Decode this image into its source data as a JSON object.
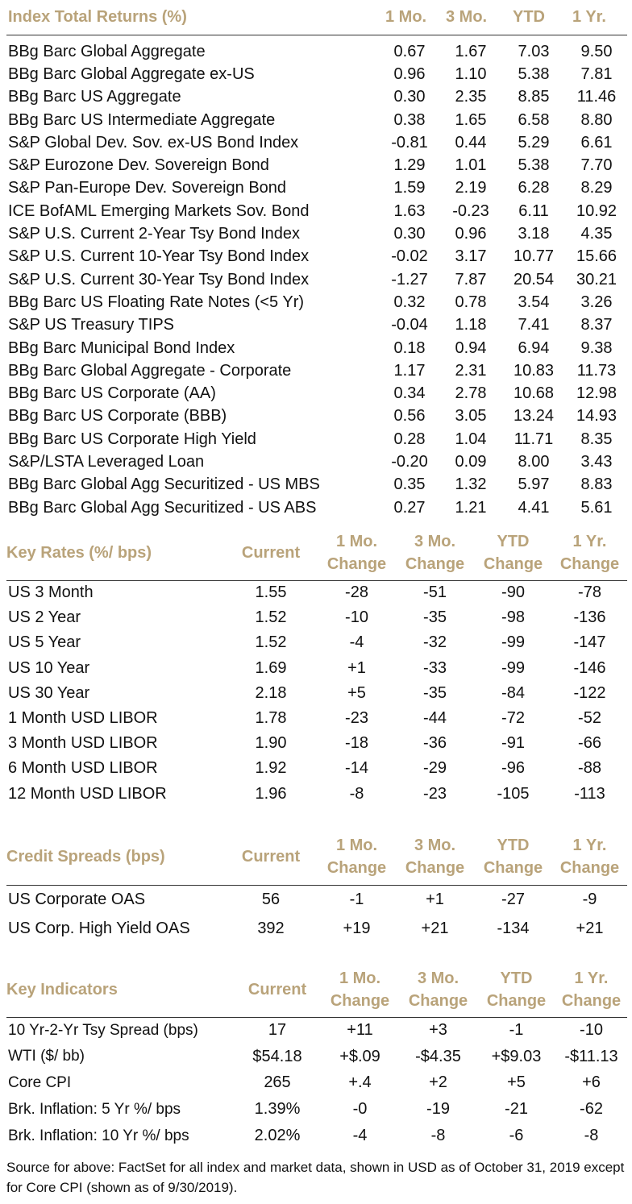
{
  "index_returns": {
    "title": "Index Total Returns (%)",
    "columns": [
      "1 Mo.",
      "3 Mo.",
      "YTD",
      "1 Yr."
    ],
    "rows": [
      {
        "name": "BBg Barc Global Aggregate",
        "v": [
          "0.67",
          "1.67",
          "7.03",
          "9.50"
        ]
      },
      {
        "name": "BBg Barc Global Aggregate ex-US",
        "v": [
          "0.96",
          "1.10",
          "5.38",
          "7.81"
        ]
      },
      {
        "name": "BBg Barc US Aggregate",
        "v": [
          "0.30",
          "2.35",
          "8.85",
          "11.46"
        ]
      },
      {
        "name": "BBg Barc US Intermediate Aggregate",
        "v": [
          "0.38",
          "1.65",
          "6.58",
          "8.80"
        ]
      },
      {
        "name": "S&P Global Dev. Sov. ex-US Bond Index",
        "v": [
          "-0.81",
          "0.44",
          "5.29",
          "6.61"
        ]
      },
      {
        "name": "S&P Eurozone Dev. Sovereign Bond",
        "v": [
          "1.29",
          "1.01",
          "5.38",
          "7.70"
        ]
      },
      {
        "name": "S&P Pan-Europe Dev. Sovereign Bond",
        "v": [
          "1.59",
          "2.19",
          "6.28",
          "8.29"
        ]
      },
      {
        "name": "ICE BofAML Emerging Markets Sov. Bond",
        "v": [
          "1.63",
          "-0.23",
          "6.11",
          "10.92"
        ]
      },
      {
        "name": "S&P U.S. Current 2-Year Tsy Bond Index",
        "v": [
          "0.30",
          "0.96",
          "3.18",
          "4.35"
        ]
      },
      {
        "name": "S&P U.S. Current 10-Year Tsy Bond Index",
        "v": [
          "-0.02",
          "3.17",
          "10.77",
          "15.66"
        ]
      },
      {
        "name": "S&P U.S. Current 30-Year Tsy Bond Index",
        "v": [
          "-1.27",
          "7.87",
          "20.54",
          "30.21"
        ]
      },
      {
        "name": "BBg Barc US Floating Rate Notes (<5 Yr)",
        "v": [
          "0.32",
          "0.78",
          "3.54",
          "3.26"
        ]
      },
      {
        "name": "S&P US Treasury TIPS",
        "v": [
          "-0.04",
          "1.18",
          "7.41",
          "8.37"
        ]
      },
      {
        "name": "BBg Barc Municipal Bond Index",
        "v": [
          "0.18",
          "0.94",
          "6.94",
          "9.38"
        ]
      },
      {
        "name": "BBg Barc Global Aggregate - Corporate",
        "v": [
          "1.17",
          "2.31",
          "10.83",
          "11.73"
        ]
      },
      {
        "name": "BBg Barc US Corporate (AA)",
        "v": [
          "0.34",
          "2.78",
          "10.68",
          "12.98"
        ]
      },
      {
        "name": "BBg Barc US Corporate (BBB)",
        "v": [
          "0.56",
          "3.05",
          "13.24",
          "14.93"
        ]
      },
      {
        "name": "BBg Barc US Corporate High Yield",
        "v": [
          "0.28",
          "1.04",
          "11.71",
          "8.35"
        ]
      },
      {
        "name": "S&P/LSTA Leveraged Loan",
        "v": [
          "-0.20",
          "0.09",
          "8.00",
          "3.43"
        ]
      },
      {
        "name": "BBg Barc Global Agg Securitized - US MBS",
        "v": [
          "0.35",
          "1.32",
          "5.97",
          "8.83"
        ]
      },
      {
        "name": "BBg Barc Global Agg Securitized - US ABS",
        "v": [
          "0.27",
          "1.21",
          "4.41",
          "5.61"
        ]
      }
    ]
  },
  "key_rates": {
    "title": "Key Rates (%/ bps)",
    "columns": [
      {
        "l1": "Current",
        "l2": ""
      },
      {
        "l1": "1 Mo.",
        "l2": "Change"
      },
      {
        "l1": "3 Mo.",
        "l2": "Change"
      },
      {
        "l1": "YTD",
        "l2": "Change"
      },
      {
        "l1": "1 Yr.",
        "l2": "Change"
      }
    ],
    "rows": [
      {
        "name": "US 3 Month",
        "v": [
          "1.55",
          "-28",
          "-51",
          "-90",
          "-78"
        ]
      },
      {
        "name": "US 2 Year",
        "v": [
          "1.52",
          "-10",
          "-35",
          "-98",
          "-136"
        ]
      },
      {
        "name": "US 5 Year",
        "v": [
          "1.52",
          "-4",
          "-32",
          "-99",
          "-147"
        ]
      },
      {
        "name": "US 10 Year",
        "v": [
          "1.69",
          "+1",
          "-33",
          "-99",
          "-146"
        ]
      },
      {
        "name": "US 30 Year",
        "v": [
          "2.18",
          "+5",
          "-35",
          "-84",
          "-122"
        ]
      },
      {
        "name": "1 Month USD LIBOR",
        "v": [
          "1.78",
          "-23",
          "-44",
          "-72",
          "-52"
        ]
      },
      {
        "name": "3 Month USD LIBOR",
        "v": [
          "1.90",
          "-18",
          "-36",
          "-91",
          "-66"
        ]
      },
      {
        "name": "6 Month USD LIBOR",
        "v": [
          "1.92",
          "-14",
          "-29",
          "-96",
          "-88"
        ]
      },
      {
        "name": "12 Month USD LIBOR",
        "v": [
          "1.96",
          "-8",
          "-23",
          "-105",
          "-113"
        ]
      }
    ]
  },
  "credit_spreads": {
    "title": "Credit Spreads (bps)",
    "columns": [
      {
        "l1": "Current",
        "l2": ""
      },
      {
        "l1": "1 Mo.",
        "l2": "Change"
      },
      {
        "l1": "3 Mo.",
        "l2": "Change"
      },
      {
        "l1": "YTD",
        "l2": "Change"
      },
      {
        "l1": "1 Yr.",
        "l2": "Change"
      }
    ],
    "rows": [
      {
        "name": "US Corporate OAS",
        "v": [
          "56",
          "-1",
          "+1",
          "-27",
          "-9"
        ]
      },
      {
        "name": "US Corp. High Yield OAS",
        "v": [
          "392",
          "+19",
          "+21",
          "-134",
          "+21"
        ]
      }
    ]
  },
  "key_indicators": {
    "title": "Key Indicators",
    "columns": [
      {
        "l1": "Current",
        "l2": ""
      },
      {
        "l1": "1 Mo.",
        "l2": "Change"
      },
      {
        "l1": "3 Mo.",
        "l2": "Change"
      },
      {
        "l1": "YTD",
        "l2": "Change"
      },
      {
        "l1": "1 Yr.",
        "l2": "Change"
      }
    ],
    "rows": [
      {
        "name": "10 Yr-2-Yr Tsy Spread (bps)",
        "v": [
          "17",
          "+11",
          "+3",
          "-1",
          "-10"
        ]
      },
      {
        "name": "WTI ($/ bb)",
        "v": [
          "$54.18",
          "+$.09",
          "-$4.35",
          "+$9.03",
          "-$11.13"
        ]
      },
      {
        "name": "Core CPI",
        "v": [
          "265",
          "+.4",
          "+2",
          "+5",
          "+6"
        ]
      },
      {
        "name": "Brk. Inflation: 5 Yr %/ bps",
        "v": [
          "1.39%",
          "-0",
          "-19",
          "-21",
          "-62"
        ]
      },
      {
        "name": "Brk. Inflation: 10 Yr %/ bps",
        "v": [
          "2.02%",
          "-4",
          "-8",
          "-6",
          "-8"
        ]
      }
    ]
  },
  "source_note": "Source for above: FactSet for all index and market data, shown in USD as of October 31, 2019 except for Core CPI (shown as of 9/30/2019).",
  "colors": {
    "header_gold": "#b9a37a",
    "rule": "#333333",
    "text": "#111111"
  }
}
